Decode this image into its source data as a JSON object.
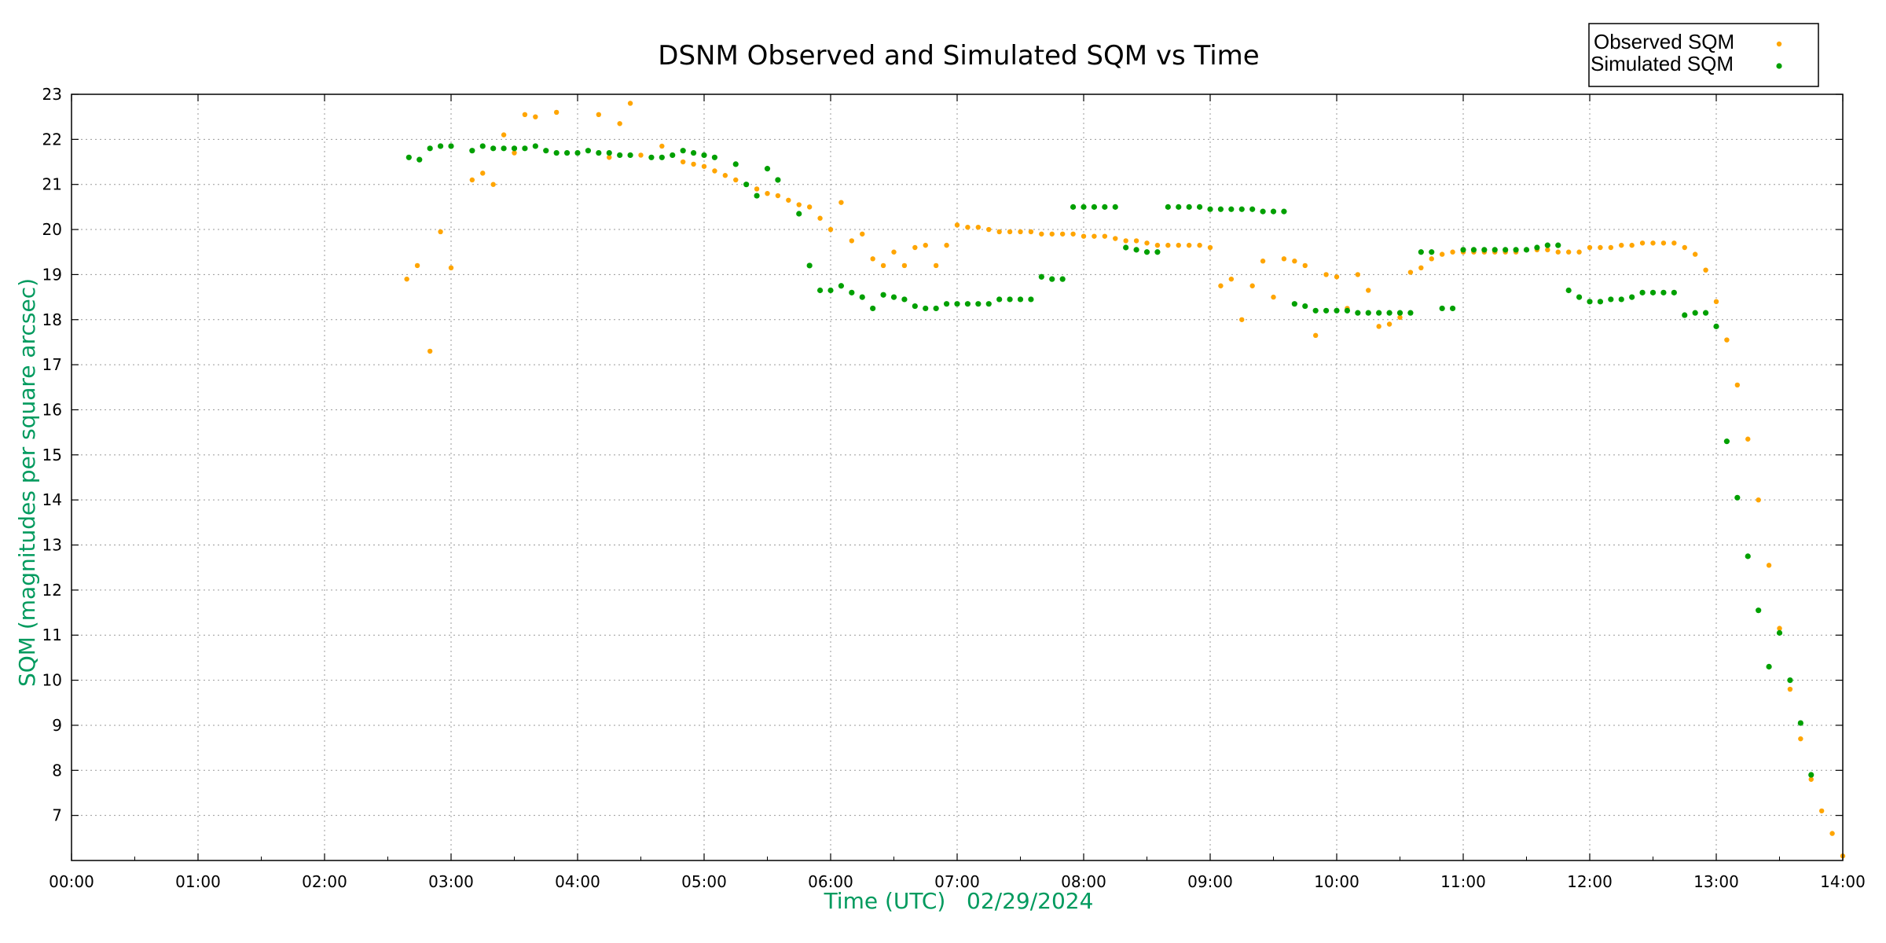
{
  "chart_data": {
    "type": "scatter",
    "title": "DSNM Observed and Simulated SQM vs Time",
    "xlabel": "Time (UTC)   02/29/2024",
    "ylabel": "SQM (magnitudes per square arcsec)",
    "xlim": [
      "00:00",
      "14:00"
    ],
    "ylim": [
      6,
      23
    ],
    "x_ticks": [
      "00:00",
      "01:00",
      "02:00",
      "03:00",
      "04:00",
      "05:00",
      "06:00",
      "07:00",
      "08:00",
      "09:00",
      "10:00",
      "11:00",
      "12:00",
      "13:00",
      "14:00"
    ],
    "y_ticks": [
      "7",
      "8",
      "9",
      "10",
      "11",
      "12",
      "13",
      "14",
      "15",
      "16",
      "17",
      "18",
      "19",
      "20",
      "21",
      "22",
      "23"
    ],
    "grid": true,
    "legend_position": "top-right outside",
    "series": [
      {
        "name": "Observed SQM",
        "color": "#ffa500",
        "points": [
          [
            "02:39",
            18.9
          ],
          [
            "02:44",
            19.2
          ],
          [
            "02:50",
            17.3
          ],
          [
            "02:55",
            19.95
          ],
          [
            "03:00",
            19.15
          ],
          [
            "03:10",
            21.1
          ],
          [
            "03:15",
            21.25
          ],
          [
            "03:20",
            21.0
          ],
          [
            "03:25",
            22.1
          ],
          [
            "03:30",
            21.7
          ],
          [
            "03:35",
            22.55
          ],
          [
            "03:40",
            22.5
          ],
          [
            "03:45",
            21.75
          ],
          [
            "03:50",
            22.6
          ],
          [
            "04:10",
            22.55
          ],
          [
            "04:15",
            21.6
          ],
          [
            "04:20",
            22.35
          ],
          [
            "04:25",
            22.8
          ],
          [
            "04:30",
            21.65
          ],
          [
            "04:40",
            21.85
          ],
          [
            "04:45",
            21.65
          ],
          [
            "04:50",
            21.5
          ],
          [
            "04:55",
            21.45
          ],
          [
            "05:00",
            21.4
          ],
          [
            "05:05",
            21.3
          ],
          [
            "05:10",
            21.2
          ],
          [
            "05:15",
            21.1
          ],
          [
            "05:20",
            21.0
          ],
          [
            "05:25",
            20.9
          ],
          [
            "05:30",
            20.8
          ],
          [
            "05:35",
            20.75
          ],
          [
            "05:40",
            20.65
          ],
          [
            "05:45",
            20.55
          ],
          [
            "05:50",
            20.5
          ],
          [
            "05:55",
            20.25
          ],
          [
            "06:00",
            20.0
          ],
          [
            "06:05",
            20.6
          ],
          [
            "06:10",
            19.75
          ],
          [
            "06:15",
            19.9
          ],
          [
            "06:20",
            19.35
          ],
          [
            "06:25",
            19.2
          ],
          [
            "06:30",
            19.5
          ],
          [
            "06:35",
            19.2
          ],
          [
            "06:40",
            19.6
          ],
          [
            "06:45",
            19.65
          ],
          [
            "06:50",
            19.2
          ],
          [
            "06:55",
            19.65
          ],
          [
            "07:00",
            20.1
          ],
          [
            "07:05",
            20.05
          ],
          [
            "07:10",
            20.05
          ],
          [
            "07:15",
            20.0
          ],
          [
            "07:20",
            19.95
          ],
          [
            "07:25",
            19.95
          ],
          [
            "07:30",
            19.95
          ],
          [
            "07:35",
            19.95
          ],
          [
            "07:40",
            19.9
          ],
          [
            "07:45",
            19.9
          ],
          [
            "07:50",
            19.9
          ],
          [
            "07:55",
            19.9
          ],
          [
            "08:00",
            19.85
          ],
          [
            "08:05",
            19.85
          ],
          [
            "08:10",
            19.85
          ],
          [
            "08:15",
            19.8
          ],
          [
            "08:20",
            19.75
          ],
          [
            "08:25",
            19.75
          ],
          [
            "08:30",
            19.7
          ],
          [
            "08:35",
            19.65
          ],
          [
            "08:40",
            19.65
          ],
          [
            "08:45",
            19.65
          ],
          [
            "08:50",
            19.65
          ],
          [
            "08:55",
            19.65
          ],
          [
            "09:00",
            19.6
          ],
          [
            "09:05",
            18.75
          ],
          [
            "09:10",
            18.9
          ],
          [
            "09:15",
            18.0
          ],
          [
            "09:20",
            18.75
          ],
          [
            "09:25",
            19.3
          ],
          [
            "09:30",
            18.5
          ],
          [
            "09:35",
            19.35
          ],
          [
            "09:40",
            19.3
          ],
          [
            "09:45",
            19.2
          ],
          [
            "09:50",
            17.65
          ],
          [
            "09:55",
            19.0
          ],
          [
            "10:00",
            18.95
          ],
          [
            "10:05",
            18.25
          ],
          [
            "10:10",
            19.0
          ],
          [
            "10:15",
            18.65
          ],
          [
            "10:20",
            17.85
          ],
          [
            "10:25",
            17.9
          ],
          [
            "10:30",
            18.05
          ],
          [
            "10:35",
            19.05
          ],
          [
            "10:40",
            19.15
          ],
          [
            "10:45",
            19.35
          ],
          [
            "10:50",
            19.45
          ],
          [
            "10:55",
            19.5
          ],
          [
            "11:00",
            19.5
          ],
          [
            "11:05",
            19.5
          ],
          [
            "11:10",
            19.5
          ],
          [
            "11:15",
            19.5
          ],
          [
            "11:20",
            19.5
          ],
          [
            "11:25",
            19.5
          ],
          [
            "11:30",
            19.55
          ],
          [
            "11:35",
            19.55
          ],
          [
            "11:40",
            19.55
          ],
          [
            "11:45",
            19.5
          ],
          [
            "11:50",
            19.5
          ],
          [
            "11:55",
            19.5
          ],
          [
            "12:00",
            19.6
          ],
          [
            "12:05",
            19.6
          ],
          [
            "12:10",
            19.6
          ],
          [
            "12:15",
            19.65
          ],
          [
            "12:20",
            19.65
          ],
          [
            "12:25",
            19.7
          ],
          [
            "12:30",
            19.7
          ],
          [
            "12:35",
            19.7
          ],
          [
            "12:40",
            19.7
          ],
          [
            "12:45",
            19.6
          ],
          [
            "12:50",
            19.45
          ],
          [
            "12:55",
            19.1
          ],
          [
            "13:00",
            18.4
          ],
          [
            "13:05",
            17.55
          ],
          [
            "13:10",
            16.55
          ],
          [
            "13:15",
            15.35
          ],
          [
            "13:20",
            14.0
          ],
          [
            "13:25",
            12.55
          ],
          [
            "13:30",
            11.15
          ],
          [
            "13:35",
            9.8
          ],
          [
            "13:40",
            8.7
          ],
          [
            "13:45",
            7.8
          ],
          [
            "13:50",
            7.1
          ],
          [
            "13:55",
            6.6
          ],
          [
            "14:00",
            6.1
          ]
        ]
      },
      {
        "name": "Simulated SQM",
        "color": "#00a000",
        "points": [
          [
            "02:40",
            21.6
          ],
          [
            "02:45",
            21.55
          ],
          [
            "02:50",
            21.8
          ],
          [
            "02:55",
            21.85
          ],
          [
            "03:00",
            21.85
          ],
          [
            "03:10",
            21.75
          ],
          [
            "03:15",
            21.85
          ],
          [
            "03:20",
            21.8
          ],
          [
            "03:25",
            21.8
          ],
          [
            "03:30",
            21.8
          ],
          [
            "03:35",
            21.8
          ],
          [
            "03:40",
            21.85
          ],
          [
            "03:45",
            21.75
          ],
          [
            "03:50",
            21.7
          ],
          [
            "03:55",
            21.7
          ],
          [
            "04:00",
            21.7
          ],
          [
            "04:05",
            21.75
          ],
          [
            "04:10",
            21.7
          ],
          [
            "04:15",
            21.7
          ],
          [
            "04:20",
            21.65
          ],
          [
            "04:25",
            21.65
          ],
          [
            "04:35",
            21.6
          ],
          [
            "04:40",
            21.6
          ],
          [
            "04:45",
            21.65
          ],
          [
            "04:50",
            21.75
          ],
          [
            "04:55",
            21.7
          ],
          [
            "05:00",
            21.65
          ],
          [
            "05:05",
            21.6
          ],
          [
            "05:15",
            21.45
          ],
          [
            "05:20",
            21.0
          ],
          [
            "05:25",
            20.75
          ],
          [
            "05:30",
            21.35
          ],
          [
            "05:35",
            21.1
          ],
          [
            "05:45",
            20.35
          ],
          [
            "05:50",
            19.2
          ],
          [
            "05:55",
            18.65
          ],
          [
            "06:00",
            18.65
          ],
          [
            "06:05",
            18.75
          ],
          [
            "06:10",
            18.6
          ],
          [
            "06:15",
            18.5
          ],
          [
            "06:20",
            18.25
          ],
          [
            "06:25",
            18.55
          ],
          [
            "06:30",
            18.5
          ],
          [
            "06:35",
            18.45
          ],
          [
            "06:40",
            18.3
          ],
          [
            "06:45",
            18.25
          ],
          [
            "06:50",
            18.25
          ],
          [
            "06:55",
            18.35
          ],
          [
            "07:00",
            18.35
          ],
          [
            "07:05",
            18.35
          ],
          [
            "07:10",
            18.35
          ],
          [
            "07:15",
            18.35
          ],
          [
            "07:20",
            18.45
          ],
          [
            "07:25",
            18.45
          ],
          [
            "07:30",
            18.45
          ],
          [
            "07:35",
            18.45
          ],
          [
            "07:40",
            18.95
          ],
          [
            "07:45",
            18.9
          ],
          [
            "07:50",
            18.9
          ],
          [
            "07:55",
            20.5
          ],
          [
            "08:00",
            20.5
          ],
          [
            "08:05",
            20.5
          ],
          [
            "08:10",
            20.5
          ],
          [
            "08:15",
            20.5
          ],
          [
            "08:20",
            19.6
          ],
          [
            "08:25",
            19.55
          ],
          [
            "08:30",
            19.5
          ],
          [
            "08:35",
            19.5
          ],
          [
            "08:40",
            20.5
          ],
          [
            "08:45",
            20.5
          ],
          [
            "08:50",
            20.5
          ],
          [
            "08:55",
            20.5
          ],
          [
            "09:00",
            20.45
          ],
          [
            "09:05",
            20.45
          ],
          [
            "09:10",
            20.45
          ],
          [
            "09:15",
            20.45
          ],
          [
            "09:20",
            20.45
          ],
          [
            "09:25",
            20.4
          ],
          [
            "09:30",
            20.4
          ],
          [
            "09:35",
            20.4
          ],
          [
            "09:40",
            18.35
          ],
          [
            "09:45",
            18.3
          ],
          [
            "09:50",
            18.2
          ],
          [
            "09:55",
            18.2
          ],
          [
            "10:00",
            18.2
          ],
          [
            "10:05",
            18.2
          ],
          [
            "10:10",
            18.15
          ],
          [
            "10:15",
            18.15
          ],
          [
            "10:20",
            18.15
          ],
          [
            "10:25",
            18.15
          ],
          [
            "10:30",
            18.15
          ],
          [
            "10:35",
            18.15
          ],
          [
            "10:40",
            19.5
          ],
          [
            "10:45",
            19.5
          ],
          [
            "10:50",
            18.25
          ],
          [
            "10:55",
            18.25
          ],
          [
            "11:00",
            19.55
          ],
          [
            "11:05",
            19.55
          ],
          [
            "11:10",
            19.55
          ],
          [
            "11:15",
            19.55
          ],
          [
            "11:20",
            19.55
          ],
          [
            "11:25",
            19.55
          ],
          [
            "11:30",
            19.55
          ],
          [
            "11:35",
            19.6
          ],
          [
            "11:40",
            19.65
          ],
          [
            "11:45",
            19.65
          ],
          [
            "11:50",
            18.65
          ],
          [
            "11:55",
            18.5
          ],
          [
            "12:00",
            18.4
          ],
          [
            "12:05",
            18.4
          ],
          [
            "12:10",
            18.45
          ],
          [
            "12:15",
            18.45
          ],
          [
            "12:20",
            18.5
          ],
          [
            "12:25",
            18.6
          ],
          [
            "12:30",
            18.6
          ],
          [
            "12:35",
            18.6
          ],
          [
            "12:40",
            18.6
          ],
          [
            "12:45",
            18.1
          ],
          [
            "12:50",
            18.15
          ],
          [
            "12:55",
            18.15
          ],
          [
            "13:00",
            17.85
          ],
          [
            "13:05",
            15.3
          ],
          [
            "13:10",
            14.05
          ],
          [
            "13:15",
            12.75
          ],
          [
            "13:20",
            11.55
          ],
          [
            "13:25",
            10.3
          ],
          [
            "13:30",
            11.05
          ],
          [
            "13:35",
            10.0
          ],
          [
            "13:40",
            9.05
          ],
          [
            "13:45",
            7.9
          ]
        ]
      }
    ]
  }
}
